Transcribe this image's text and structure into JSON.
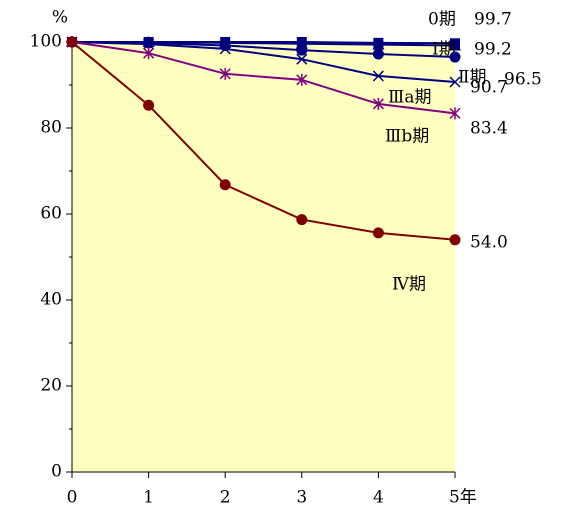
{
  "chart_data": {
    "type": "line",
    "y_label": "%",
    "x": [
      0,
      1,
      2,
      3,
      4,
      5
    ],
    "xlim": [
      0,
      5
    ],
    "xticks": [
      0,
      1,
      2,
      3,
      4,
      {
        "value": 5,
        "label": "5年"
      }
    ],
    "ylim": [
      0,
      100
    ],
    "yticks": [
      0,
      20,
      40,
      60,
      80,
      100
    ],
    "yminorticks": [
      10,
      30,
      50,
      70,
      90
    ],
    "plot_background": "#ffffc0",
    "series": [
      {
        "name": "0期",
        "color": "#000080",
        "marker": "square",
        "values": [
          100,
          100,
          100,
          100,
          99.8,
          99.7
        ],
        "value_labels": [
          null,
          null,
          null,
          null,
          null,
          "99.7"
        ]
      },
      {
        "name": "Ⅰ期",
        "color": "#000080",
        "marker": "triangle",
        "values": [
          100,
          100,
          99.8,
          99.6,
          99.4,
          99.2
        ],
        "value_labels": [
          null,
          null,
          null,
          null,
          null,
          "99.2"
        ]
      },
      {
        "name": "Ⅱ期",
        "color": "#000080",
        "marker": "circle",
        "values": [
          100,
          99.8,
          99.2,
          98.1,
          97.2,
          96.5
        ],
        "value_labels": [
          null,
          null,
          null,
          null,
          null,
          "96.5"
        ]
      },
      {
        "name": "Ⅲa期",
        "color": "#000080",
        "marker": "x",
        "values": [
          100,
          99.5,
          98.4,
          96.0,
          92.1,
          90.7
        ],
        "value_labels": [
          null,
          null,
          null,
          null,
          null,
          "90.7"
        ]
      },
      {
        "name": "Ⅲb期",
        "color": "#800080",
        "marker": "asterisk",
        "values": [
          100,
          97.4,
          92.6,
          91.2,
          85.6,
          83.4
        ],
        "value_labels": [
          null,
          null,
          null,
          null,
          null,
          "83.4"
        ]
      },
      {
        "name": "Ⅳ期",
        "color": "#800000",
        "marker": "circle",
        "values": [
          100,
          85.3,
          66.8,
          58.7,
          55.6,
          54.0
        ],
        "value_labels": [
          null,
          null,
          null,
          null,
          null,
          "54.0"
        ]
      }
    ]
  }
}
